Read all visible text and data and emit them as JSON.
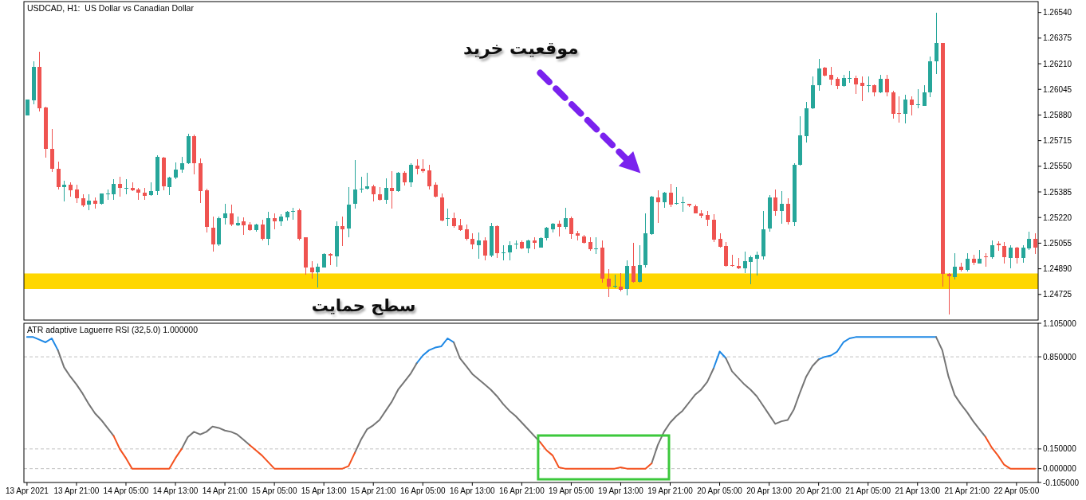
{
  "chart_data": [
    {
      "type": "candlestick",
      "title": "USDCAD, H1:  US Dollar vs Canadian Dollar",
      "categories": [
        "13 Apr 2021",
        null,
        null,
        null,
        null,
        null,
        null,
        null,
        "13 Apr 21:00",
        null,
        null,
        null,
        null,
        null,
        null,
        null,
        "14 Apr 05:00",
        null,
        null,
        null,
        null,
        null,
        null,
        null,
        "14 Apr 13:00",
        null,
        null,
        null,
        null,
        null,
        null,
        null,
        "14 Apr 21:00",
        null,
        null,
        null,
        null,
        null,
        null,
        null,
        "15 Apr 05:00",
        null,
        null,
        null,
        null,
        null,
        null,
        null,
        "15 Apr 13:00",
        null,
        null,
        null,
        null,
        null,
        null,
        null,
        "15 Apr 21:00",
        null,
        null,
        null,
        null,
        null,
        null,
        null,
        "16 Apr 05:00",
        null,
        null,
        null,
        null,
        null,
        null,
        null,
        "16 Apr 13:00",
        null,
        null,
        null,
        null,
        null,
        null,
        null,
        "16 Apr 21:00",
        null,
        null,
        null,
        null,
        null,
        null,
        null,
        "19 Apr 05:00",
        null,
        null,
        null,
        null,
        null,
        null,
        null,
        "19 Apr 13:00",
        null,
        null,
        null,
        null,
        null,
        null,
        null,
        "19 Apr 21:00",
        null,
        null,
        null,
        null,
        null,
        null,
        null,
        "20 Apr 05:00",
        null,
        null,
        null,
        null,
        null,
        null,
        null,
        "20 Apr 13:00",
        null,
        null,
        null,
        null,
        null,
        null,
        null,
        "20 Apr 21:00",
        null,
        null,
        null,
        null,
        null,
        null,
        null,
        "21 Apr 05:00",
        null,
        null,
        null,
        null,
        null,
        null,
        null,
        "21 Apr 13:00",
        null,
        null,
        null,
        null,
        null,
        null,
        null,
        "21 Apr 21:00",
        null,
        null,
        null,
        null,
        null,
        null,
        null,
        "22 Apr 05:00",
        null,
        null,
        null
      ],
      "ohlc": [
        [
          1.25879,
          1.25979,
          1.25879,
          1.25979
        ],
        [
          1.25976,
          1.26228,
          1.25951,
          1.26189
        ],
        [
          1.26189,
          1.26287,
          1.25905,
          1.25925
        ],
        [
          1.25928,
          1.25933,
          1.25605,
          1.2566
        ],
        [
          1.25662,
          1.25789,
          1.25514,
          1.25534
        ],
        [
          1.25534,
          1.25582,
          1.25398,
          1.25415
        ],
        [
          1.25415,
          1.25458,
          1.25322,
          1.25432
        ],
        [
          1.25432,
          1.25446,
          1.25356,
          1.25398
        ],
        [
          1.25398,
          1.25432,
          1.25313,
          1.25344
        ],
        [
          1.25344,
          1.25369,
          1.25288,
          1.25296
        ],
        [
          1.25303,
          1.25369,
          1.25267,
          1.2533
        ],
        [
          1.25327,
          1.25347,
          1.25279,
          1.25306
        ],
        [
          1.25308,
          1.25376,
          1.25303,
          1.25373
        ],
        [
          1.25369,
          1.25403,
          1.25335,
          1.25373
        ],
        [
          1.25369,
          1.25466,
          1.25335,
          1.25437
        ],
        [
          1.25437,
          1.2548,
          1.25356,
          1.25412
        ],
        [
          1.2541,
          1.25469,
          1.25369,
          1.25413
        ],
        [
          1.25412,
          1.25449,
          1.2539,
          1.25395
        ],
        [
          1.25398,
          1.25412,
          1.25335,
          1.25378
        ],
        [
          1.25381,
          1.25412,
          1.25335,
          1.25363
        ],
        [
          1.25363,
          1.25449,
          1.2536,
          1.25391
        ],
        [
          1.25391,
          1.25619,
          1.25364,
          1.25612
        ],
        [
          1.25607,
          1.25612,
          1.25395,
          1.2542
        ],
        [
          1.25415,
          1.2548,
          1.25364,
          1.25478
        ],
        [
          1.25478,
          1.25573,
          1.25466,
          1.25529
        ],
        [
          1.25525,
          1.25612,
          1.25508,
          1.25568
        ],
        [
          1.25568,
          1.25758,
          1.25565,
          1.25743
        ],
        [
          1.25743,
          1.25752,
          1.255,
          1.25568
        ],
        [
          1.25571,
          1.25602,
          1.25313,
          1.2539
        ],
        [
          1.25395,
          1.25408,
          1.25123,
          1.25157
        ],
        [
          1.25157,
          1.25228,
          1.24999,
          1.2505
        ],
        [
          1.25046,
          1.25228,
          1.25038,
          1.25214
        ],
        [
          1.25212,
          1.25308,
          1.25174,
          1.25245
        ],
        [
          1.25245,
          1.25304,
          1.25167,
          1.25172
        ],
        [
          1.25167,
          1.25225,
          1.25163,
          1.25184
        ],
        [
          1.25194,
          1.2522,
          1.25109,
          1.25167
        ],
        [
          1.25177,
          1.25191,
          1.25135,
          1.2514
        ],
        [
          1.2514,
          1.25181,
          1.25131,
          1.25174
        ],
        [
          1.25174,
          1.25206,
          1.25072,
          1.25084
        ],
        [
          1.25081,
          1.25256,
          1.25041,
          1.25214
        ],
        [
          1.25214,
          1.25245,
          1.25143,
          1.25191
        ],
        [
          1.25194,
          1.25242,
          1.25163,
          1.25225
        ],
        [
          1.2522,
          1.25262,
          1.25203,
          1.25257
        ],
        [
          1.2526,
          1.25284,
          1.25206,
          1.25263
        ],
        [
          1.25267,
          1.25279,
          1.25075,
          1.25084
        ],
        [
          1.25092,
          1.25095,
          1.24854,
          1.24897
        ],
        [
          1.24897,
          1.24939,
          1.24828,
          1.24866
        ],
        [
          1.24866,
          1.24922,
          1.24769,
          1.24902
        ],
        [
          1.249,
          1.2499,
          1.24897,
          1.24985
        ],
        [
          1.24985,
          1.2499,
          1.24914,
          1.24973
        ],
        [
          1.24973,
          1.25194,
          1.24902,
          1.25167
        ],
        [
          1.25167,
          1.25225,
          1.25038,
          1.25148
        ],
        [
          1.25148,
          1.25418,
          1.25095,
          1.25304
        ],
        [
          1.25304,
          1.25588,
          1.25276,
          1.25398
        ],
        [
          1.25399,
          1.25483,
          1.25381,
          1.25405
        ],
        [
          1.25405,
          1.25508,
          1.25401,
          1.25422
        ],
        [
          1.25422,
          1.25432,
          1.25322,
          1.25369
        ],
        [
          1.25369,
          1.25415,
          1.2533,
          1.25335
        ],
        [
          1.25335,
          1.25474,
          1.25308,
          1.25412
        ],
        [
          1.25412,
          1.25517,
          1.25279,
          1.2539
        ],
        [
          1.2539,
          1.25512,
          1.25386,
          1.25508
        ],
        [
          1.25508,
          1.25517,
          1.25424,
          1.25449
        ],
        [
          1.25449,
          1.25568,
          1.25415,
          1.2556
        ],
        [
          1.25554,
          1.25594,
          1.25497,
          1.25534
        ],
        [
          1.25534,
          1.25594,
          1.25508,
          1.25521
        ],
        [
          1.25525,
          1.2556,
          1.25398,
          1.25424
        ],
        [
          1.25429,
          1.25449,
          1.25347,
          1.25351
        ],
        [
          1.25351,
          1.25373,
          1.25198,
          1.25203
        ],
        [
          1.25209,
          1.25276,
          1.25167,
          1.25214
        ],
        [
          1.25218,
          1.25253,
          1.25152,
          1.25167
        ],
        [
          1.25172,
          1.25211,
          1.25135,
          1.25143
        ],
        [
          1.25146,
          1.25177,
          1.25072,
          1.25084
        ],
        [
          1.25084,
          1.25117,
          1.25016,
          1.25046
        ],
        [
          1.25041,
          1.25123,
          1.24953,
          1.25072
        ],
        [
          1.25072,
          1.25092,
          1.24942,
          1.24973
        ],
        [
          1.24973,
          1.25186,
          1.24965,
          1.25165
        ],
        [
          1.25165,
          1.2517,
          1.24959,
          1.24993
        ],
        [
          1.24992,
          1.25044,
          1.24942,
          1.24995
        ],
        [
          1.24993,
          1.25067,
          1.24942,
          1.25041
        ],
        [
          1.25046,
          1.25072,
          1.25016,
          1.25051
        ],
        [
          1.25061,
          1.25072,
          1.25016,
          1.25021
        ],
        [
          1.25021,
          1.25078,
          1.24993,
          1.25072
        ],
        [
          1.25075,
          1.25092,
          1.25016,
          1.25061
        ],
        [
          1.25029,
          1.25092,
          1.25024,
          1.25089
        ],
        [
          1.25084,
          1.2516,
          1.25075,
          1.25152
        ],
        [
          1.25148,
          1.25186,
          1.25123,
          1.25182
        ],
        [
          1.25182,
          1.25203,
          1.251,
          1.2516
        ],
        [
          1.25157,
          1.25284,
          1.25143,
          1.25214
        ],
        [
          1.25214,
          1.25225,
          1.25084,
          1.25114
        ],
        [
          1.25117,
          1.25135,
          1.25075,
          1.251
        ],
        [
          1.251,
          1.25109,
          1.2505,
          1.25061
        ],
        [
          1.25061,
          1.25095,
          1.25004,
          1.25016
        ],
        [
          1.25017,
          1.25095,
          1.24987,
          1.25022
        ],
        [
          1.25024,
          1.25075,
          1.24803,
          1.24823
        ],
        [
          1.24828,
          1.24888,
          1.24709,
          1.24777
        ],
        [
          1.24776,
          1.24854,
          1.24766,
          1.24779
        ],
        [
          1.24777,
          1.24862,
          1.24744,
          1.24755
        ],
        [
          1.2476,
          1.24942,
          1.24718,
          1.24908
        ],
        [
          1.24908,
          1.25058,
          1.24803,
          1.24806
        ],
        [
          1.24806,
          1.25044,
          1.24803,
          1.24914
        ],
        [
          1.24914,
          1.25248,
          1.24897,
          1.25117
        ],
        [
          1.25114,
          1.25361,
          1.25109,
          1.25356
        ],
        [
          1.25351,
          1.25395,
          1.25186,
          1.25322
        ],
        [
          1.25322,
          1.25384,
          1.25284,
          1.25381
        ],
        [
          1.25381,
          1.25437,
          1.25288,
          1.25304
        ],
        [
          1.25308,
          1.25415,
          1.25304,
          1.25311
        ],
        [
          1.25315,
          1.25356,
          1.25256,
          1.25318
        ],
        [
          1.25306,
          1.2531,
          1.25288,
          1.25298
        ],
        [
          1.25293,
          1.25303,
          1.25245,
          1.25248
        ],
        [
          1.25248,
          1.25267,
          1.25214,
          1.25231
        ],
        [
          1.25237,
          1.25262,
          1.25167,
          1.25206
        ],
        [
          1.25208,
          1.25242,
          1.25061,
          1.25078
        ],
        [
          1.25082,
          1.25117,
          1.25024,
          1.25033
        ],
        [
          1.25036,
          1.25061,
          1.24902,
          1.24908
        ],
        [
          1.24912,
          1.24981,
          1.24902,
          1.24907
        ],
        [
          1.24908,
          1.24959,
          1.24888,
          1.24894
        ],
        [
          1.24894,
          1.24999,
          1.24862,
          1.24939
        ],
        [
          1.24936,
          1.24976,
          1.24789,
          1.24965
        ],
        [
          1.24956,
          1.24999,
          1.24845,
          1.24981
        ],
        [
          1.24973,
          1.25262,
          1.24948,
          1.25146
        ],
        [
          1.25146,
          1.25364,
          1.25129,
          1.25347
        ],
        [
          1.25347,
          1.25401,
          1.25231,
          1.25262
        ],
        [
          1.25262,
          1.2539,
          1.2518,
          1.2531
        ],
        [
          1.2531,
          1.25344,
          1.25174,
          1.25191
        ],
        [
          1.25191,
          1.25568,
          1.25167,
          1.25561
        ],
        [
          1.25558,
          1.25874,
          1.25554,
          1.25748
        ],
        [
          1.25741,
          1.25962,
          1.25704,
          1.25922
        ],
        [
          1.25922,
          1.26126,
          1.25917,
          1.2607
        ],
        [
          1.2607,
          1.2624,
          1.26036,
          1.2618
        ],
        [
          1.26183,
          1.26189,
          1.26129,
          1.26134
        ],
        [
          1.26137,
          1.26192,
          1.2607,
          1.26108
        ],
        [
          1.26112,
          1.26124,
          1.26044,
          1.26064
        ],
        [
          1.26064,
          1.26141,
          1.26061,
          1.26117
        ],
        [
          1.26117,
          1.26163,
          1.26087,
          1.2612
        ],
        [
          1.2612,
          1.26134,
          1.26013,
          1.26078
        ],
        [
          1.26087,
          1.26129,
          1.25971,
          1.26064
        ],
        [
          1.26066,
          1.26126,
          1.26027,
          1.2607
        ],
        [
          1.26073,
          1.26078,
          1.26001,
          1.26027
        ],
        [
          1.26027,
          1.26137,
          1.26019,
          1.26112
        ],
        [
          1.26112,
          1.26137,
          1.25998,
          1.26024
        ],
        [
          1.26027,
          1.26036,
          1.25857,
          1.25891
        ],
        [
          1.25893,
          1.26001,
          1.25832,
          1.25888
        ],
        [
          1.25886,
          1.2601,
          1.25828,
          1.25979
        ],
        [
          1.25979,
          1.26001,
          1.25879,
          1.25942
        ],
        [
          1.25942,
          1.26044,
          1.25922,
          1.25947
        ],
        [
          1.25942,
          1.2607,
          1.25938,
          1.26027
        ],
        [
          1.26024,
          1.26257,
          1.25996,
          1.26226
        ],
        [
          1.26222,
          1.2654,
          1.26143,
          1.26342
        ],
        [
          1.26342,
          1.26342,
          1.24777,
          1.24854
        ],
        [
          1.24857,
          1.24862,
          1.24596,
          1.2484
        ],
        [
          1.24837,
          1.2499,
          1.2482,
          1.24902
        ],
        [
          1.24902,
          1.24931,
          1.24871,
          1.2488
        ],
        [
          1.2488,
          1.2499,
          1.24871,
          1.24953
        ],
        [
          1.24953,
          1.24981,
          1.24914,
          1.24925
        ],
        [
          1.24925,
          1.2501,
          1.24922,
          1.24956
        ],
        [
          1.24971,
          1.24993,
          1.24902,
          1.24968
        ],
        [
          1.24965,
          1.25075,
          1.24956,
          1.25044
        ],
        [
          1.2505,
          1.25067,
          1.25007,
          1.25038
        ],
        [
          1.25038,
          1.25061,
          1.24925,
          1.24965
        ],
        [
          1.24959,
          1.25041,
          1.24891,
          1.25024
        ],
        [
          1.25024,
          1.25033,
          1.24925,
          1.24959
        ],
        [
          1.24959,
          1.25044,
          1.24931,
          1.25024
        ],
        [
          1.25021,
          1.25129,
          1.2501,
          1.25085
        ],
        [
          1.25085,
          1.25117,
          1.24987,
          1.25027
        ]
      ],
      "colors": [
        "#26a69a",
        "#26a69a",
        "#ef5350",
        "#ef5350",
        "#ef5350",
        "#ef5350",
        "#26a69a",
        "#ef5350",
        "#ef5350",
        "#ef5350",
        "#26a69a",
        "#ef5350",
        "#26a69a",
        "#26a69a",
        "#26a69a",
        "#ef5350",
        "#26a69a",
        "#ef5350",
        "#ef5350",
        "#ef5350",
        "#26a69a",
        "#26a69a",
        "#ef5350",
        "#26a69a",
        "#26a69a",
        "#26a69a",
        "#26a69a",
        "#ef5350",
        "#ef5350",
        "#ef5350",
        "#ef5350",
        "#26a69a",
        "#26a69a",
        "#ef5350",
        "#26a69a",
        "#ef5350",
        "#ef5350",
        "#26a69a",
        "#ef5350",
        "#26a69a",
        "#ef5350",
        "#26a69a",
        "#26a69a",
        "#26a69a",
        "#ef5350",
        "#ef5350",
        "#ef5350",
        "#26a69a",
        "#26a69a",
        "#ef5350",
        "#26a69a",
        "#ef5350",
        "#26a69a",
        "#26a69a",
        "#26a69a",
        "#26a69a",
        "#ef5350",
        "#ef5350",
        "#26a69a",
        "#ef5350",
        "#26a69a",
        "#ef5350",
        "#26a69a",
        "#ef5350",
        "#ef5350",
        "#ef5350",
        "#ef5350",
        "#ef5350",
        "#26a69a",
        "#ef5350",
        "#ef5350",
        "#ef5350",
        "#ef5350",
        "#26a69a",
        "#ef5350",
        "#26a69a",
        "#ef5350",
        "#26a69a",
        "#26a69a",
        "#26a69a",
        "#ef5350",
        "#26a69a",
        "#ef5350",
        "#26a69a",
        "#26a69a",
        "#26a69a",
        "#ef5350",
        "#26a69a",
        "#ef5350",
        "#ef5350",
        "#ef5350",
        "#ef5350",
        "#26a69a",
        "#ef5350",
        "#ef5350",
        "#26a69a",
        "#ef5350",
        "#26a69a",
        "#ef5350",
        "#26a69a",
        "#26a69a",
        "#26a69a",
        "#ef5350",
        "#26a69a",
        "#ef5350",
        "#26a69a",
        "#26a69a",
        "#ef5350",
        "#ef5350",
        "#ef5350",
        "#ef5350",
        "#ef5350",
        "#ef5350",
        "#ef5350",
        "#ef5350",
        "#ef5350",
        "#26a69a",
        "#26a69a",
        "#26a69a",
        "#26a69a",
        "#26a69a",
        "#ef5350",
        "#26a69a",
        "#ef5350",
        "#26a69a",
        "#26a69a",
        "#26a69a",
        "#26a69a",
        "#26a69a",
        "#ef5350",
        "#ef5350",
        "#ef5350",
        "#26a69a",
        "#26a69a",
        "#ef5350",
        "#ef5350",
        "#26a69a",
        "#ef5350",
        "#26a69a",
        "#ef5350",
        "#ef5350",
        "#ef5350",
        "#26a69a",
        "#ef5350",
        "#26a69a",
        "#26a69a",
        "#26a69a",
        "#26a69a",
        "#ef5350",
        "#ef5350",
        "#26a69a",
        "#ef5350",
        "#26a69a",
        "#ef5350",
        "#26a69a",
        "#ef5350",
        "#26a69a",
        "#ef5350",
        "#ef5350",
        "#26a69a",
        "#ef5350",
        "#26a69a",
        "#26a69a",
        "#ef5350"
      ],
      "ylim": [
        1.2456,
        1.2661
      ],
      "yticks": [
        {
          "value": 1.2654,
          "label": "1.26540"
        },
        1.26375,
        {
          "value": 1.2621,
          "label": "1.26210"
        },
        1.26045,
        {
          "value": 1.2588,
          "label": "1.25880"
        },
        1.25715,
        {
          "value": 1.2555,
          "label": "1.25550"
        },
        1.25385,
        {
          "value": 1.2522,
          "label": "1.25220"
        },
        1.25055,
        {
          "value": 1.2489,
          "label": "1.24890"
        },
        1.24725
      ],
      "tick_labels": "y",
      "bands": [
        {
          "axis": "y",
          "from": 1.2476,
          "to": 1.2486,
          "label": "سطح حمایت",
          "color": "#ffd700"
        }
      ],
      "annotations": [
        "موقعیت خرید"
      ]
    },
    {
      "type": "line",
      "title": "ATR adaptive Laguerre RSI (32,5.0) 1.000000",
      "categories": [
        "13 Apr 2021",
        null,
        null,
        null,
        null,
        null,
        null,
        null,
        "13 Apr 21:00",
        null,
        null,
        null,
        null,
        null,
        null,
        null,
        "14 Apr 05:00",
        null,
        null,
        null,
        null,
        null,
        null,
        null,
        "14 Apr 13:00",
        null,
        null,
        null,
        null,
        null,
        null,
        null,
        "14 Apr 21:00",
        null,
        null,
        null,
        null,
        null,
        null,
        null,
        "15 Apr 05:00",
        null,
        null,
        null,
        null,
        null,
        null,
        null,
        "15 Apr 13:00",
        null,
        null,
        null,
        null,
        null,
        null,
        null,
        "15 Apr 21:00",
        null,
        null,
        null,
        null,
        null,
        null,
        null,
        "16 Apr 05:00",
        null,
        null,
        null,
        null,
        null,
        null,
        null,
        "16 Apr 13:00",
        null,
        null,
        null,
        null,
        null,
        null,
        null,
        "16 Apr 21:00",
        null,
        null,
        null,
        null,
        null,
        null,
        null,
        "19 Apr 05:00",
        null,
        null,
        null,
        null,
        null,
        null,
        null,
        "19 Apr 13:00",
        null,
        null,
        null,
        null,
        null,
        null,
        null,
        "19 Apr 21:00",
        null,
        null,
        null,
        null,
        null,
        null,
        null,
        "20 Apr 05:00",
        null,
        null,
        null,
        null,
        null,
        null,
        null,
        "20 Apr 13:00",
        null,
        null,
        null,
        null,
        null,
        null,
        null,
        "20 Apr 21:00",
        null,
        null,
        null,
        null,
        null,
        null,
        null,
        "21 Apr 05:00",
        null,
        null,
        null,
        null,
        null,
        null,
        null,
        "21 Apr 13:00",
        null,
        null,
        null,
        null,
        null,
        null,
        null,
        "21 Apr 21:00",
        null,
        null,
        null,
        null,
        null,
        null,
        null,
        "22 Apr 05:00",
        null,
        null,
        null
      ],
      "series": [
        {
          "color": "#1e88e5",
          "values": [
            1,
            1,
            0.98,
            0.96,
            0.99,
            0.9,
            null,
            null,
            null,
            null,
            null,
            null,
            null,
            null,
            null,
            null,
            null,
            null,
            null,
            null,
            null,
            null,
            null,
            null,
            null,
            null,
            null,
            null,
            null,
            null,
            null,
            null,
            null,
            null,
            null,
            null,
            null,
            null,
            null,
            null,
            null,
            null,
            null,
            null,
            null,
            null,
            null,
            null,
            null,
            null,
            null,
            null,
            null,
            null,
            null,
            null,
            null,
            null,
            null,
            null,
            null,
            null,
            null,
            0.8,
            0.86,
            0.9,
            0.92,
            0.93,
            0.99,
            0.96,
            null,
            null,
            null,
            null,
            null,
            null,
            null,
            null,
            null,
            null,
            null,
            null,
            null,
            null,
            null,
            null,
            null,
            null,
            null,
            null,
            null,
            null,
            null,
            null,
            null,
            null,
            null,
            null,
            null,
            null,
            null,
            null,
            null,
            null,
            null,
            null,
            null,
            null,
            null,
            null,
            null,
            0.76,
            0.89,
            0.84,
            null,
            null,
            null,
            null,
            null,
            null,
            null,
            null,
            null,
            null,
            null,
            null,
            null,
            null,
            0.83,
            0.85,
            0.86,
            0.89,
            0.96,
            0.99,
            1,
            1,
            1,
            1,
            1,
            1,
            1,
            1,
            1,
            1,
            1,
            1,
            1,
            1,
            null,
            null,
            null,
            null,
            null,
            null,
            null,
            null,
            null,
            null,
            null,
            null,
            null,
            null,
            null,
            null
          ]
        },
        {
          "color": "#757575",
          "values": [
            null,
            null,
            null,
            null,
            null,
            0.9,
            0.77,
            0.7,
            0.64,
            0.57,
            0.49,
            0.42,
            0.37,
            0.31,
            0.25,
            null,
            null,
            null,
            null,
            null,
            null,
            null,
            null,
            null,
            null,
            0.15,
            0.24,
            0.28,
            0.26,
            0.28,
            0.32,
            0.31,
            0.29,
            0.28,
            0.26,
            0.22,
            0.18,
            null,
            null,
            null,
            null,
            null,
            null,
            null,
            null,
            null,
            null,
            null,
            null,
            null,
            null,
            null,
            null,
            0.12,
            0.22,
            0.3,
            0.33,
            0.37,
            0.44,
            0.51,
            0.6,
            0.66,
            0.72,
            0.8,
            null,
            null,
            null,
            null,
            null,
            0.96,
            0.84,
            0.78,
            0.72,
            0.68,
            0.64,
            0.6,
            0.55,
            0.49,
            0.44,
            0.4,
            0.35,
            0.3,
            0.25,
            0.2,
            null,
            null,
            null,
            null,
            null,
            null,
            null,
            null,
            null,
            null,
            null,
            null,
            null,
            null,
            null,
            null,
            null,
            0.04,
            0.18,
            0.28,
            0.35,
            0.4,
            0.44,
            0.5,
            0.56,
            0.6,
            0.66,
            0.76,
            null,
            0.84,
            0.74,
            0.69,
            0.64,
            0.6,
            0.55,
            0.48,
            0.41,
            0.34,
            0.36,
            0.37,
            0.45,
            0.58,
            0.7,
            0.78,
            0.83,
            null,
            null,
            null,
            null,
            null,
            null,
            null,
            null,
            null,
            null,
            null,
            null,
            null,
            null,
            null,
            null,
            null,
            null,
            1,
            0.9,
            0.7,
            0.56,
            0.49,
            0.43,
            0.36,
            0.3,
            0.24,
            null,
            null,
            null,
            null,
            null,
            null,
            null,
            null
          ]
        },
        {
          "color": "#f4511e",
          "values": [
            null,
            null,
            null,
            null,
            null,
            null,
            null,
            null,
            null,
            null,
            null,
            null,
            null,
            null,
            0.25,
            0.15,
            0.08,
            0,
            0,
            0,
            0,
            0,
            0,
            0,
            0.08,
            0.15,
            null,
            null,
            null,
            null,
            null,
            null,
            null,
            null,
            null,
            null,
            0.18,
            0.14,
            0.1,
            0.05,
            0,
            0,
            0,
            0,
            0,
            0,
            0,
            0,
            0,
            0,
            0,
            0,
            0.02,
            0.12,
            null,
            null,
            null,
            null,
            null,
            null,
            null,
            null,
            null,
            null,
            null,
            null,
            null,
            null,
            null,
            null,
            null,
            null,
            null,
            null,
            null,
            null,
            null,
            null,
            null,
            null,
            null,
            null,
            null,
            0.2,
            0.14,
            0.1,
            0.01,
            0,
            0,
            0,
            0,
            0,
            0,
            0,
            0,
            0,
            0.01,
            0,
            0,
            0,
            0,
            0.04,
            null,
            null,
            null,
            null,
            null,
            null,
            null,
            null,
            null,
            null,
            null,
            null,
            null,
            null,
            null,
            null,
            null,
            null,
            null,
            null,
            null,
            null,
            null,
            null,
            null,
            null,
            null,
            null,
            null,
            null,
            null,
            null,
            null,
            null,
            null,
            null,
            null,
            null,
            null,
            null,
            null,
            null,
            null,
            null,
            null,
            null,
            null,
            null,
            null,
            null,
            null,
            null,
            null,
            0.24,
            0.16,
            0.1,
            0.03,
            0,
            0,
            0,
            0,
            0
          ]
        }
      ],
      "ylim": [
        -0.105,
        1.105
      ],
      "yticks": [
        {
          "value": 1.105,
          "label": "1.105000"
        },
        {
          "value": 0.85,
          "label": "0.850000"
        },
        {
          "value": 0.15,
          "label": "0.150000"
        },
        {
          "value": 0,
          "label": "0.000000"
        },
        {
          "value": -0.105,
          "label": "-0.105000"
        }
      ],
      "ref_lines": [
        {
          "axis": "y",
          "value": 0.85,
          "color": "#c0c0c0",
          "line_style": "dashed"
        },
        {
          "axis": "y",
          "value": 0.15,
          "color": "#c0c0c0",
          "line_style": "dashed"
        },
        {
          "axis": "y",
          "value": 0,
          "color": "#c0c0c0",
          "line_style": "dashed"
        }
      ]
    }
  ]
}
